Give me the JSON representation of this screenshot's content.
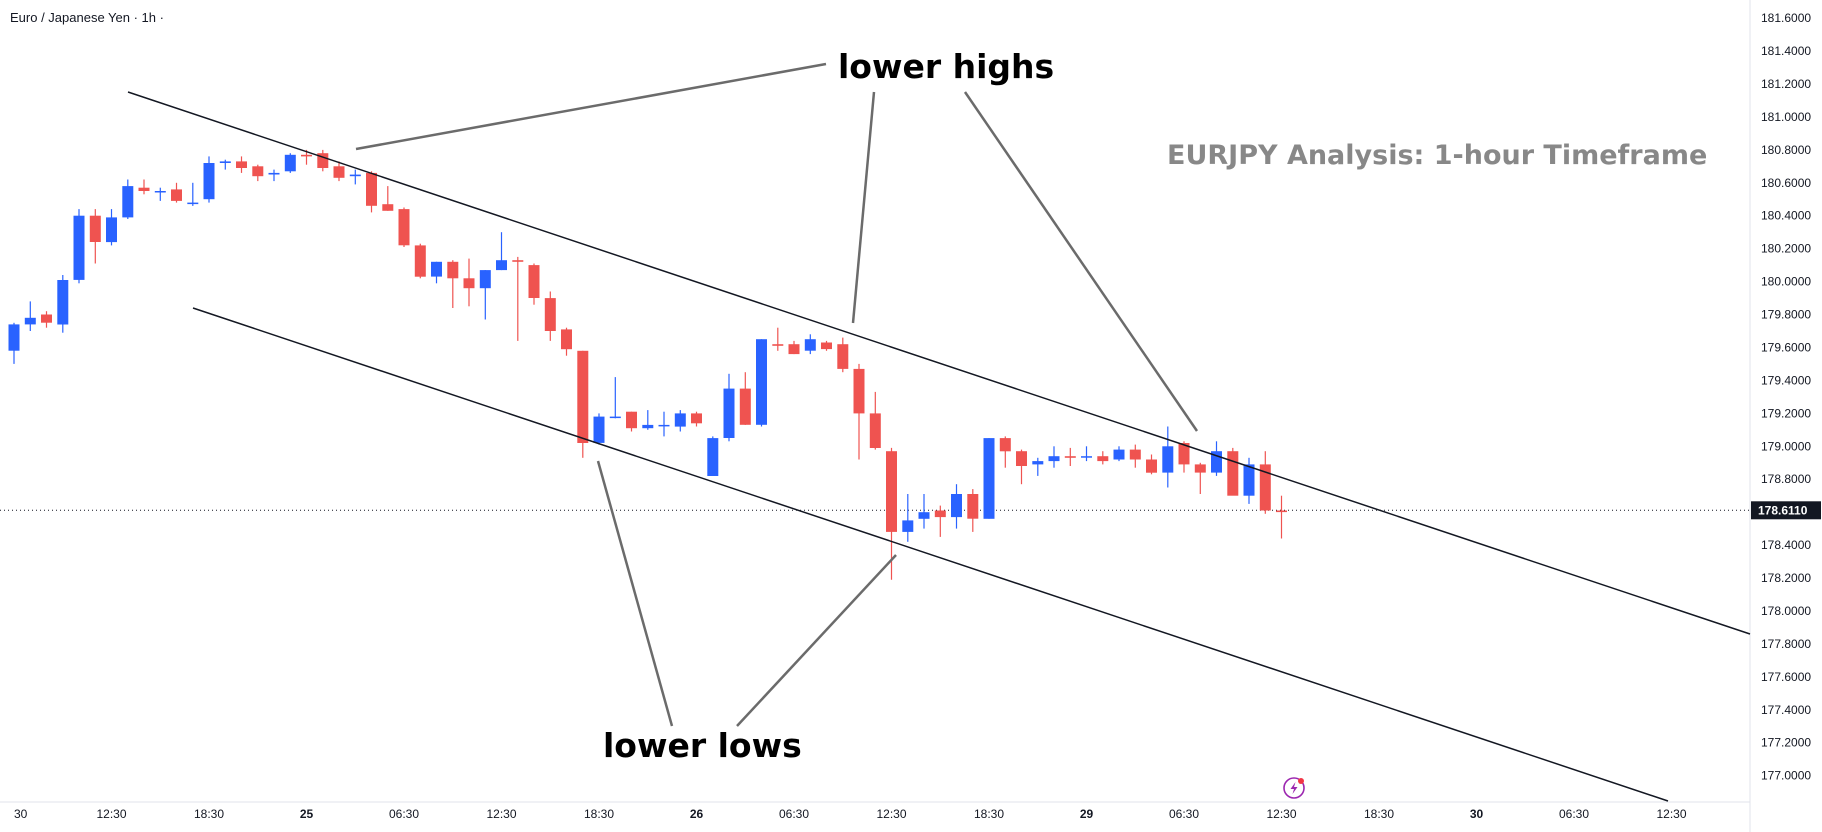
{
  "symbol_label": "Euro / Japanese Yen · 1h ·",
  "colors": {
    "up": "#2962ff",
    "down": "#ef5350",
    "axis_text": "#131722",
    "title": "#888888",
    "annotation": "#000000",
    "price_tag_bg": "#131722",
    "channel_line": "#131722",
    "pointer_line": "#6b6b6b"
  },
  "icons": {
    "bottom_right": "lightning-icon"
  },
  "chart_data": {
    "type": "candlestick",
    "title": "EURJPY Analysis: 1-hour Timeframe",
    "symbol": "Euro / Japanese Yen",
    "timeframe": "1h",
    "ylim": [
      176.84,
      181.71
    ],
    "x_range": [
      0,
      124
    ],
    "y_ticks": [
      "181.6000",
      "181.4000",
      "181.2000",
      "181.0000",
      "180.8000",
      "180.6000",
      "180.4000",
      "180.2000",
      "180.0000",
      "179.8000",
      "179.6000",
      "179.4000",
      "179.2000",
      "179.0000",
      "178.8000",
      "178.6000",
      "178.4000",
      "178.2000",
      "178.0000",
      "177.8000",
      "177.6000",
      "177.4000",
      "177.2000",
      "177.0000"
    ],
    "x_ticks": [
      {
        "label": "30",
        "x": 0,
        "bold": false
      },
      {
        "label": "12:30",
        "x": 6,
        "bold": false
      },
      {
        "label": "18:30",
        "x": 12,
        "bold": false
      },
      {
        "label": "25",
        "x": 18,
        "bold": true
      },
      {
        "label": "06:30",
        "x": 24,
        "bold": false
      },
      {
        "label": "12:30",
        "x": 30,
        "bold": false
      },
      {
        "label": "18:30",
        "x": 36,
        "bold": false
      },
      {
        "label": "26",
        "x": 42,
        "bold": true
      },
      {
        "label": "06:30",
        "x": 48,
        "bold": false
      },
      {
        "label": "12:30",
        "x": 54,
        "bold": false
      },
      {
        "label": "18:30",
        "x": 60,
        "bold": false
      },
      {
        "label": "29",
        "x": 66,
        "bold": true
      },
      {
        "label": "06:30",
        "x": 72,
        "bold": false
      },
      {
        "label": "12:30",
        "x": 78,
        "bold": false
      },
      {
        "label": "18:30",
        "x": 84,
        "bold": false
      },
      {
        "label": "30",
        "x": 90,
        "bold": true
      },
      {
        "label": "06:30",
        "x": 96,
        "bold": false
      },
      {
        "label": "12:30",
        "x": 102,
        "bold": false
      }
    ],
    "last_price": "178.6110",
    "last_price_value": 178.611,
    "candles": [
      [
        179.58,
        179.75,
        179.5,
        179.74
      ],
      [
        179.74,
        179.88,
        179.7,
        179.78
      ],
      [
        179.8,
        179.82,
        179.72,
        179.75
      ],
      [
        179.74,
        180.04,
        179.69,
        180.01
      ],
      [
        180.01,
        180.44,
        179.99,
        180.4
      ],
      [
        180.4,
        180.44,
        180.11,
        180.24
      ],
      [
        180.24,
        180.44,
        180.22,
        180.39
      ],
      [
        180.39,
        180.62,
        180.38,
        180.58
      ],
      [
        180.57,
        180.62,
        180.53,
        180.55
      ],
      [
        180.55,
        180.57,
        180.49,
        180.55
      ],
      [
        180.56,
        180.6,
        180.48,
        180.49
      ],
      [
        180.48,
        180.6,
        180.46,
        180.48
      ],
      [
        180.5,
        180.76,
        180.48,
        180.72
      ],
      [
        180.72,
        180.74,
        180.68,
        180.73
      ],
      [
        180.73,
        180.76,
        180.66,
        180.69
      ],
      [
        180.7,
        180.71,
        180.61,
        180.64
      ],
      [
        180.65,
        180.68,
        180.61,
        180.66
      ],
      [
        180.67,
        180.78,
        180.66,
        180.77
      ],
      [
        180.77,
        180.8,
        180.71,
        180.76
      ],
      [
        180.78,
        180.8,
        180.67,
        180.69
      ],
      [
        180.7,
        180.73,
        180.61,
        180.63
      ],
      [
        180.64,
        180.68,
        180.59,
        180.65
      ],
      [
        180.66,
        180.67,
        180.42,
        180.46
      ],
      [
        180.47,
        180.58,
        180.43,
        180.43
      ],
      [
        180.44,
        180.45,
        180.21,
        180.22
      ],
      [
        180.22,
        180.23,
        180.02,
        180.03
      ],
      [
        180.03,
        180.12,
        179.99,
        180.12
      ],
      [
        180.12,
        180.13,
        179.84,
        180.02
      ],
      [
        180.02,
        180.14,
        179.85,
        179.96
      ],
      [
        179.96,
        180.07,
        179.77,
        180.07
      ],
      [
        180.07,
        180.3,
        180.07,
        180.13
      ],
      [
        180.13,
        180.15,
        179.64,
        180.12
      ],
      [
        180.1,
        180.11,
        179.86,
        179.9
      ],
      [
        179.9,
        179.94,
        179.64,
        179.7
      ],
      [
        179.71,
        179.72,
        179.55,
        179.59
      ],
      [
        179.58,
        179.58,
        178.93,
        179.02
      ],
      [
        179.02,
        179.2,
        179.01,
        179.18
      ],
      [
        179.18,
        179.42,
        179.17,
        179.18
      ],
      [
        179.21,
        179.21,
        179.09,
        179.11
      ],
      [
        179.11,
        179.22,
        179.1,
        179.13
      ],
      [
        179.13,
        179.21,
        179.06,
        179.13
      ],
      [
        179.12,
        179.22,
        179.09,
        179.2
      ],
      [
        179.2,
        179.21,
        179.12,
        179.14
      ],
      [
        178.82,
        179.06,
        178.82,
        179.05
      ],
      [
        179.05,
        179.44,
        179.03,
        179.35
      ],
      [
        179.35,
        179.45,
        179.13,
        179.13
      ],
      [
        179.13,
        179.65,
        179.12,
        179.65
      ],
      [
        179.62,
        179.72,
        179.58,
        179.61
      ],
      [
        179.62,
        179.64,
        179.56,
        179.56
      ],
      [
        179.58,
        179.68,
        179.56,
        179.65
      ],
      [
        179.63,
        179.64,
        179.58,
        179.59
      ],
      [
        179.62,
        179.66,
        179.45,
        179.47
      ],
      [
        179.47,
        179.5,
        178.92,
        179.2
      ],
      [
        179.2,
        179.33,
        178.98,
        178.99
      ],
      [
        178.97,
        178.99,
        178.19,
        178.48
      ],
      [
        178.48,
        178.71,
        178.42,
        178.55
      ],
      [
        178.56,
        178.71,
        178.5,
        178.6
      ],
      [
        178.61,
        178.64,
        178.45,
        178.57
      ],
      [
        178.57,
        178.77,
        178.5,
        178.71
      ],
      [
        178.71,
        178.74,
        178.48,
        178.56
      ],
      [
        178.56,
        179.05,
        178.56,
        179.05
      ],
      [
        179.05,
        179.06,
        178.87,
        178.97
      ],
      [
        178.97,
        178.98,
        178.77,
        178.88
      ],
      [
        178.89,
        178.93,
        178.82,
        178.91
      ],
      [
        178.91,
        179.0,
        178.87,
        178.94
      ],
      [
        178.94,
        178.99,
        178.88,
        178.93
      ],
      [
        178.94,
        179.0,
        178.91,
        178.94
      ],
      [
        178.94,
        178.97,
        178.89,
        178.91
      ],
      [
        178.92,
        179.0,
        178.91,
        178.98
      ],
      [
        178.98,
        179.01,
        178.87,
        178.92
      ],
      [
        178.92,
        178.95,
        178.83,
        178.84
      ],
      [
        178.84,
        179.12,
        178.75,
        179.0
      ],
      [
        179.02,
        179.03,
        178.84,
        178.89
      ],
      [
        178.89,
        178.9,
        178.71,
        178.84
      ],
      [
        178.84,
        179.03,
        178.82,
        178.97
      ],
      [
        178.97,
        178.99,
        178.71,
        178.7
      ],
      [
        178.7,
        178.93,
        178.65,
        178.89
      ],
      [
        178.89,
        178.97,
        178.59,
        178.61
      ],
      [
        178.61,
        178.7,
        178.44,
        178.6
      ]
    ]
  },
  "annotations": {
    "lower_highs": "lower highs",
    "lower_lows": "lower lows"
  }
}
